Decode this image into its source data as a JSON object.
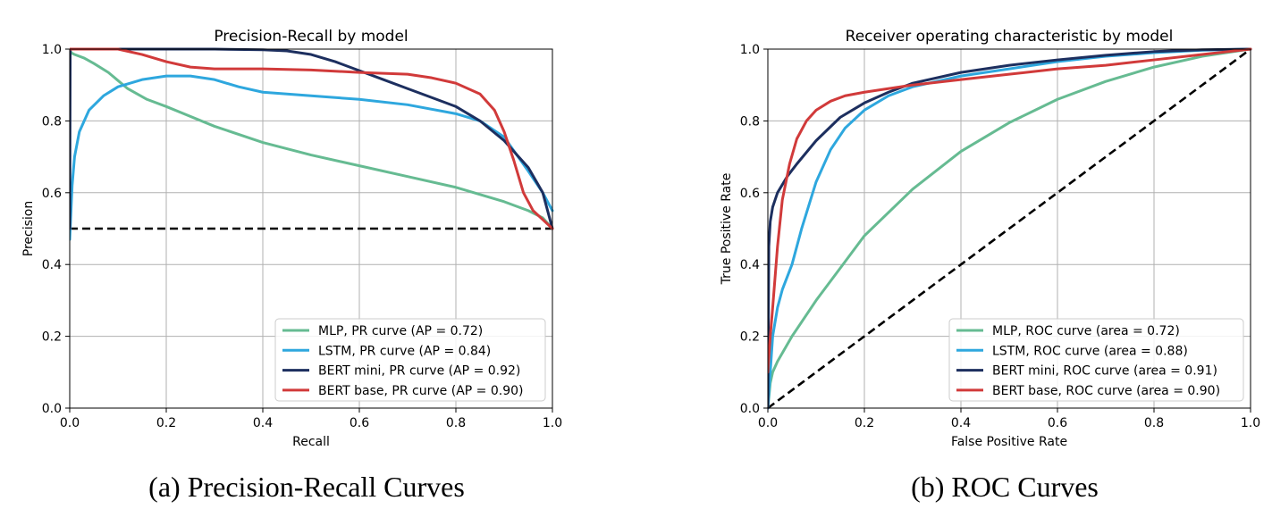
{
  "colors": {
    "MLP": "#66bb92",
    "LSTM": "#2ea7de",
    "BERT mini": "#1d2f5f",
    "BERT base": "#d13a3a"
  },
  "chart_data": [
    {
      "type": "line",
      "title": "Precision-Recall by model",
      "xlabel": "Recall",
      "ylabel": "Precision",
      "xlim": [
        0,
        1
      ],
      "ylim": [
        0,
        1
      ],
      "xticks": [
        0,
        0.2,
        0.4,
        0.6,
        0.8,
        1.0
      ],
      "yticks": [
        0,
        0.2,
        0.4,
        0.6,
        0.8,
        1.0
      ],
      "grid": true,
      "legend_position": "lower-right",
      "caption": "(a) Precision-Recall Curves",
      "baseline": [
        [
          0,
          0.5
        ],
        [
          1,
          0.5
        ]
      ],
      "series": [
        {
          "name": "MLP, PR curve (AP = 0.72)",
          "color": "#66bb92",
          "points": [
            [
              0,
              1.0
            ],
            [
              0.003,
              0.99
            ],
            [
              0.01,
              0.985
            ],
            [
              0.03,
              0.975
            ],
            [
              0.05,
              0.96
            ],
            [
              0.08,
              0.935
            ],
            [
              0.12,
              0.89
            ],
            [
              0.16,
              0.86
            ],
            [
              0.2,
              0.84
            ],
            [
              0.3,
              0.785
            ],
            [
              0.4,
              0.74
            ],
            [
              0.5,
              0.705
            ],
            [
              0.6,
              0.675
            ],
            [
              0.7,
              0.645
            ],
            [
              0.8,
              0.615
            ],
            [
              0.9,
              0.575
            ],
            [
              0.95,
              0.55
            ],
            [
              0.98,
              0.53
            ],
            [
              1.0,
              0.5
            ]
          ]
        },
        {
          "name": "LSTM, PR curve (AP = 0.84)",
          "color": "#2ea7de",
          "points": [
            [
              0,
              0.47
            ],
            [
              0.005,
              0.62
            ],
            [
              0.01,
              0.7
            ],
            [
              0.02,
              0.77
            ],
            [
              0.04,
              0.83
            ],
            [
              0.07,
              0.87
            ],
            [
              0.1,
              0.895
            ],
            [
              0.15,
              0.915
            ],
            [
              0.2,
              0.925
            ],
            [
              0.25,
              0.925
            ],
            [
              0.3,
              0.915
            ],
            [
              0.35,
              0.895
            ],
            [
              0.4,
              0.88
            ],
            [
              0.5,
              0.87
            ],
            [
              0.6,
              0.86
            ],
            [
              0.7,
              0.845
            ],
            [
              0.8,
              0.82
            ],
            [
              0.85,
              0.8
            ],
            [
              0.9,
              0.755
            ],
            [
              0.95,
              0.66
            ],
            [
              0.98,
              0.6
            ],
            [
              1.0,
              0.55
            ]
          ]
        },
        {
          "name": "BERT mini, PR curve (AP = 0.92)",
          "color": "#1d2f5f",
          "points": [
            [
              0,
              0.5
            ],
            [
              0.001,
              1.0
            ],
            [
              0.1,
              1.0
            ],
            [
              0.3,
              1.0
            ],
            [
              0.4,
              0.998
            ],
            [
              0.45,
              0.995
            ],
            [
              0.5,
              0.985
            ],
            [
              0.55,
              0.965
            ],
            [
              0.6,
              0.94
            ],
            [
              0.65,
              0.915
            ],
            [
              0.7,
              0.89
            ],
            [
              0.75,
              0.865
            ],
            [
              0.8,
              0.84
            ],
            [
              0.85,
              0.8
            ],
            [
              0.9,
              0.745
            ],
            [
              0.95,
              0.67
            ],
            [
              0.98,
              0.6
            ],
            [
              1.0,
              0.5
            ]
          ]
        },
        {
          "name": "BERT base, PR curve (AP = 0.90)",
          "color": "#d13a3a",
          "points": [
            [
              0,
              1.0
            ],
            [
              0.1,
              1.0
            ],
            [
              0.15,
              0.985
            ],
            [
              0.2,
              0.965
            ],
            [
              0.25,
              0.95
            ],
            [
              0.3,
              0.945
            ],
            [
              0.4,
              0.945
            ],
            [
              0.5,
              0.942
            ],
            [
              0.6,
              0.935
            ],
            [
              0.7,
              0.93
            ],
            [
              0.75,
              0.92
            ],
            [
              0.8,
              0.905
            ],
            [
              0.85,
              0.875
            ],
            [
              0.88,
              0.83
            ],
            [
              0.9,
              0.77
            ],
            [
              0.92,
              0.69
            ],
            [
              0.94,
              0.6
            ],
            [
              0.96,
              0.55
            ],
            [
              0.98,
              0.525
            ],
            [
              1.0,
              0.5
            ]
          ]
        }
      ]
    },
    {
      "type": "line",
      "title": "Receiver operating characteristic by model",
      "xlabel": "False Positive Rate",
      "ylabel": "True Positive Rate",
      "xlim": [
        0,
        1
      ],
      "ylim": [
        0,
        1
      ],
      "xticks": [
        0,
        0.2,
        0.4,
        0.6,
        0.8,
        1.0
      ],
      "yticks": [
        0,
        0.2,
        0.4,
        0.6,
        0.8,
        1.0
      ],
      "grid": true,
      "legend_position": "lower-right",
      "caption": "(b) ROC Curves",
      "baseline": [
        [
          0,
          0
        ],
        [
          1,
          1
        ]
      ],
      "series": [
        {
          "name": "MLP, ROC curve (area = 0.72)",
          "color": "#66bb92",
          "points": [
            [
              0,
              0
            ],
            [
              0.005,
              0.07
            ],
            [
              0.01,
              0.1
            ],
            [
              0.02,
              0.13
            ],
            [
              0.05,
              0.2
            ],
            [
              0.1,
              0.3
            ],
            [
              0.15,
              0.39
            ],
            [
              0.2,
              0.48
            ],
            [
              0.3,
              0.61
            ],
            [
              0.4,
              0.715
            ],
            [
              0.5,
              0.795
            ],
            [
              0.6,
              0.86
            ],
            [
              0.7,
              0.91
            ],
            [
              0.8,
              0.95
            ],
            [
              0.9,
              0.98
            ],
            [
              1.0,
              1.0
            ]
          ]
        },
        {
          "name": "LSTM, ROC curve (area = 0.88)",
          "color": "#2ea7de",
          "points": [
            [
              0,
              0
            ],
            [
              0.005,
              0.1
            ],
            [
              0.01,
              0.2
            ],
            [
              0.02,
              0.28
            ],
            [
              0.03,
              0.33
            ],
            [
              0.05,
              0.4
            ],
            [
              0.07,
              0.5
            ],
            [
              0.1,
              0.63
            ],
            [
              0.13,
              0.72
            ],
            [
              0.16,
              0.78
            ],
            [
              0.2,
              0.83
            ],
            [
              0.25,
              0.87
            ],
            [
              0.3,
              0.895
            ],
            [
              0.4,
              0.925
            ],
            [
              0.5,
              0.945
            ],
            [
              0.6,
              0.965
            ],
            [
              0.7,
              0.98
            ],
            [
              0.8,
              0.99
            ],
            [
              0.9,
              0.997
            ],
            [
              1.0,
              1.0
            ]
          ]
        },
        {
          "name": "BERT mini, ROC curve (area = 0.91)",
          "color": "#1d2f5f",
          "points": [
            [
              0,
              0
            ],
            [
              0.002,
              0.45
            ],
            [
              0.005,
              0.52
            ],
            [
              0.01,
              0.56
            ],
            [
              0.02,
              0.6
            ],
            [
              0.04,
              0.645
            ],
            [
              0.06,
              0.68
            ],
            [
              0.1,
              0.745
            ],
            [
              0.15,
              0.81
            ],
            [
              0.2,
              0.85
            ],
            [
              0.25,
              0.88
            ],
            [
              0.3,
              0.905
            ],
            [
              0.4,
              0.935
            ],
            [
              0.5,
              0.955
            ],
            [
              0.6,
              0.97
            ],
            [
              0.7,
              0.983
            ],
            [
              0.8,
              0.993
            ],
            [
              0.9,
              0.998
            ],
            [
              1.0,
              1.0
            ]
          ]
        },
        {
          "name": "BERT base, ROC curve (area = 0.90)",
          "color": "#d13a3a",
          "points": [
            [
              0,
              0.1
            ],
            [
              0.005,
              0.2
            ],
            [
              0.01,
              0.28
            ],
            [
              0.02,
              0.45
            ],
            [
              0.03,
              0.58
            ],
            [
              0.045,
              0.68
            ],
            [
              0.06,
              0.75
            ],
            [
              0.08,
              0.8
            ],
            [
              0.1,
              0.83
            ],
            [
              0.13,
              0.855
            ],
            [
              0.16,
              0.87
            ],
            [
              0.2,
              0.88
            ],
            [
              0.3,
              0.9
            ],
            [
              0.4,
              0.915
            ],
            [
              0.5,
              0.93
            ],
            [
              0.6,
              0.945
            ],
            [
              0.7,
              0.955
            ],
            [
              0.8,
              0.97
            ],
            [
              0.9,
              0.985
            ],
            [
              1.0,
              1.0
            ]
          ]
        }
      ]
    }
  ]
}
